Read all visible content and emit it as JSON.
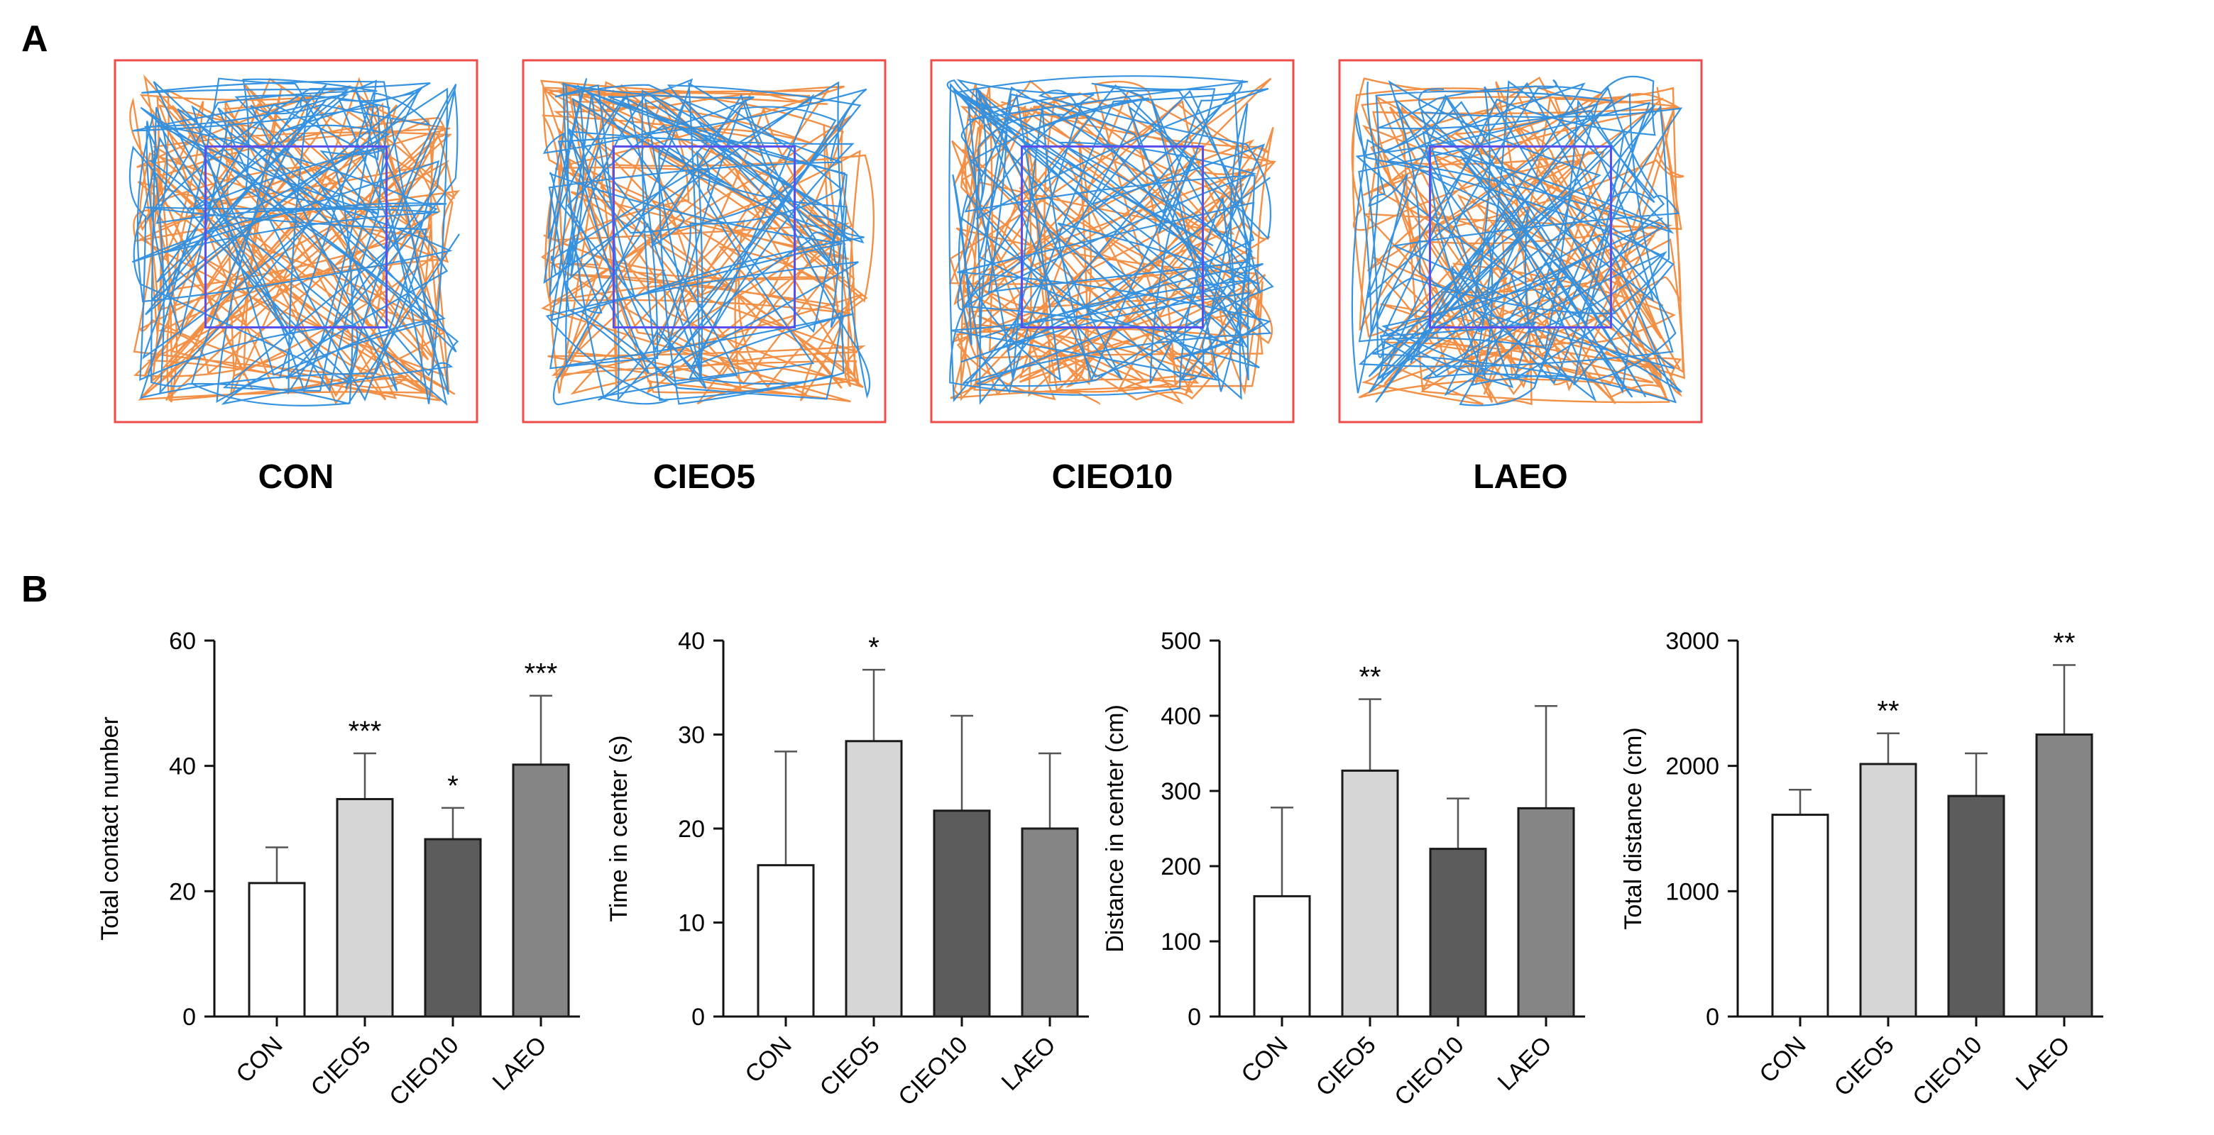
{
  "panel_a": {
    "letter": "A",
    "arenas": [
      {
        "label": "CON"
      },
      {
        "label": "CIEO5"
      },
      {
        "label": "CIEO10"
      },
      {
        "label": "LAEO"
      }
    ],
    "colors": {
      "arena_border": "#f04b4b",
      "center_zone": "#5a4ff0",
      "track_blue": "#2b8de0",
      "track_orange": "#f28a3c"
    }
  },
  "panel_b": {
    "letter": "B"
  },
  "colors": {
    "bar_fills": [
      "#ffffff",
      "#d6d6d6",
      "#5c5c5c",
      "#858585"
    ],
    "bar_stroke": "#1a1a1a",
    "error_bar": "#555555"
  },
  "chart_data": [
    {
      "type": "bar",
      "title": "",
      "xlabel": "",
      "ylabel": "Total contact number",
      "categories": [
        "CON",
        "CIEO5",
        "CIEO10",
        "LAEO"
      ],
      "values": [
        21.3,
        34.7,
        28.3,
        40.2
      ],
      "errors": [
        5.7,
        7.3,
        5.0,
        11.0
      ],
      "significance": [
        "",
        "***",
        "*",
        "***"
      ],
      "ylim": [
        0,
        60
      ],
      "yticks": [
        0,
        20,
        40,
        60
      ],
      "ytick_labels": [
        "0",
        "20",
        "40",
        "60"
      ]
    },
    {
      "type": "bar",
      "title": "",
      "xlabel": "",
      "ylabel": "Time in center (s)",
      "categories": [
        "CON",
        "CIEO5",
        "CIEO10",
        "LAEO"
      ],
      "values": [
        16.1,
        29.3,
        21.9,
        20.0
      ],
      "errors": [
        12.1,
        7.6,
        10.1,
        8.0
      ],
      "significance": [
        "",
        "*",
        "",
        ""
      ],
      "ylim": [
        0,
        40
      ],
      "yticks": [
        0,
        10,
        20,
        30,
        40
      ],
      "ytick_labels": [
        "0",
        "10",
        "20",
        "30",
        "40"
      ]
    },
    {
      "type": "bar",
      "title": "",
      "xlabel": "",
      "ylabel": "Distance in center (cm)",
      "categories": [
        "CON",
        "CIEO5",
        "CIEO10",
        "LAEO"
      ],
      "values": [
        160,
        327,
        223,
        277
      ],
      "errors": [
        118,
        95,
        67,
        136
      ],
      "significance": [
        "",
        "**",
        "",
        ""
      ],
      "ylim": [
        0,
        500
      ],
      "yticks": [
        0,
        100,
        200,
        300,
        400,
        500
      ],
      "ytick_labels": [
        "0",
        "100",
        "200",
        "300",
        "400",
        "500"
      ]
    },
    {
      "type": "bar",
      "title": "",
      "xlabel": "",
      "ylabel": "Total distance (cm)",
      "categories": [
        "CON",
        "CIEO5",
        "CIEO10",
        "LAEO"
      ],
      "values": [
        1610,
        2015,
        1760,
        2250
      ],
      "errors": [
        200,
        245,
        340,
        555
      ],
      "significance": [
        "",
        "**",
        "",
        "**"
      ],
      "ylim": [
        0,
        3000
      ],
      "yticks": [
        0,
        1000,
        2000,
        3000
      ],
      "ytick_labels": [
        "0",
        "1000",
        "2000",
        "3000"
      ]
    }
  ]
}
